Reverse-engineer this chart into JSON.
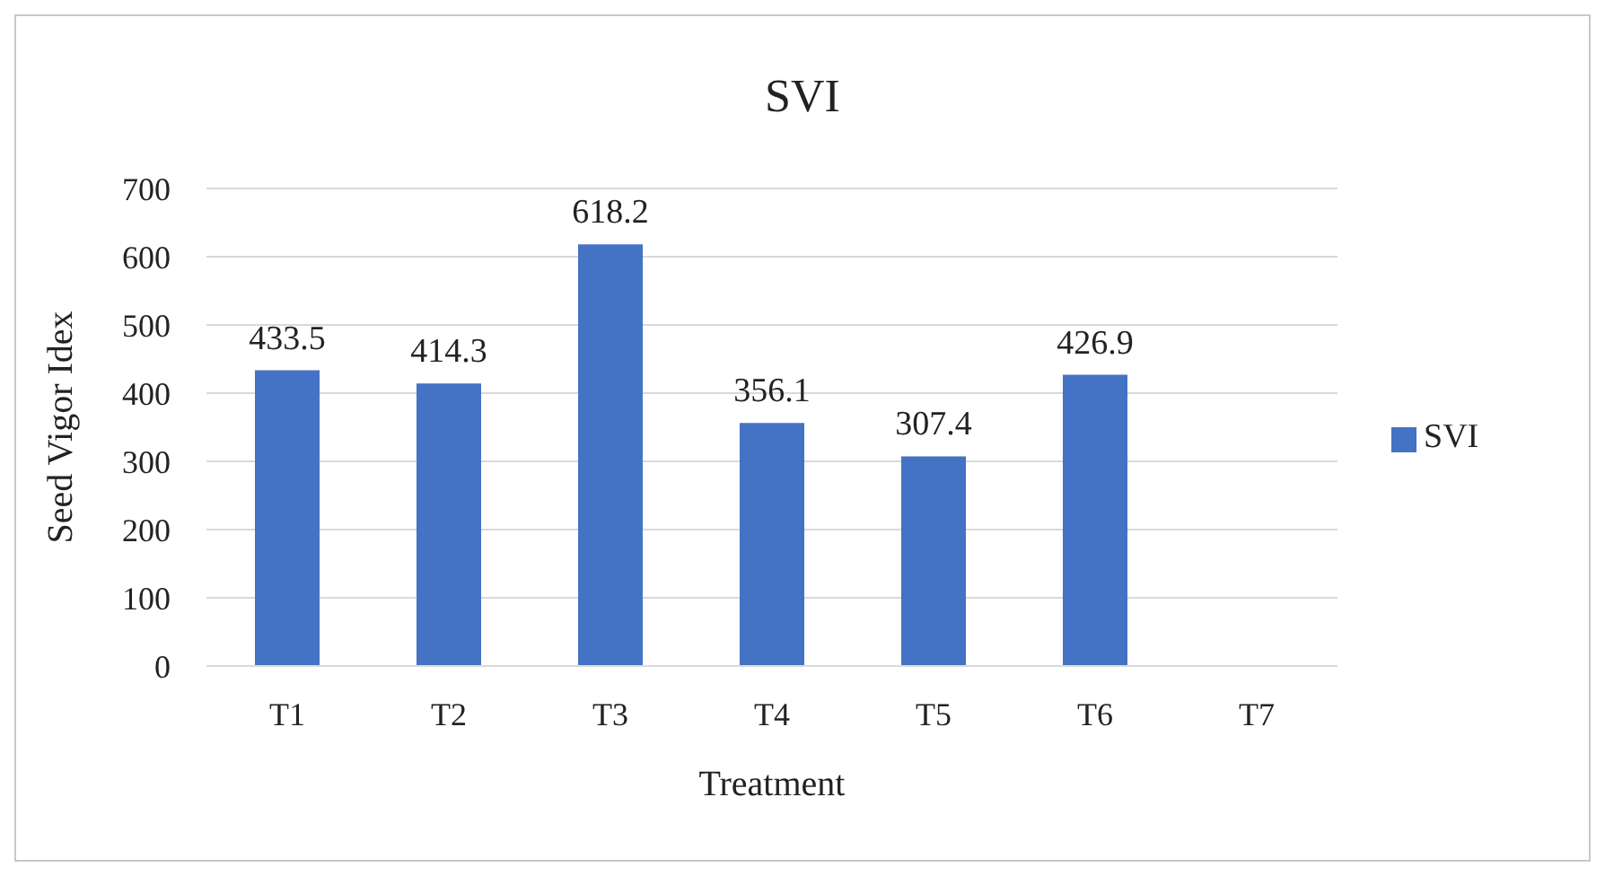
{
  "chart_data": {
    "type": "bar",
    "title": "SVI",
    "xlabel": "Treatment",
    "ylabel": "Seed Vigor Idex",
    "categories": [
      "T1",
      "T2",
      "T3",
      "T4",
      "T5",
      "T6",
      "T7"
    ],
    "series": [
      {
        "name": "SVI",
        "color": "#4472c4",
        "values": [
          433.5,
          414.3,
          618.2,
          356.1,
          307.4,
          426.9,
          null
        ]
      }
    ],
    "ylim": [
      0,
      700
    ],
    "yticks": [
      0,
      100,
      200,
      300,
      400,
      500,
      600,
      700
    ],
    "grid": "y",
    "legend": "right",
    "data_labels": true
  }
}
